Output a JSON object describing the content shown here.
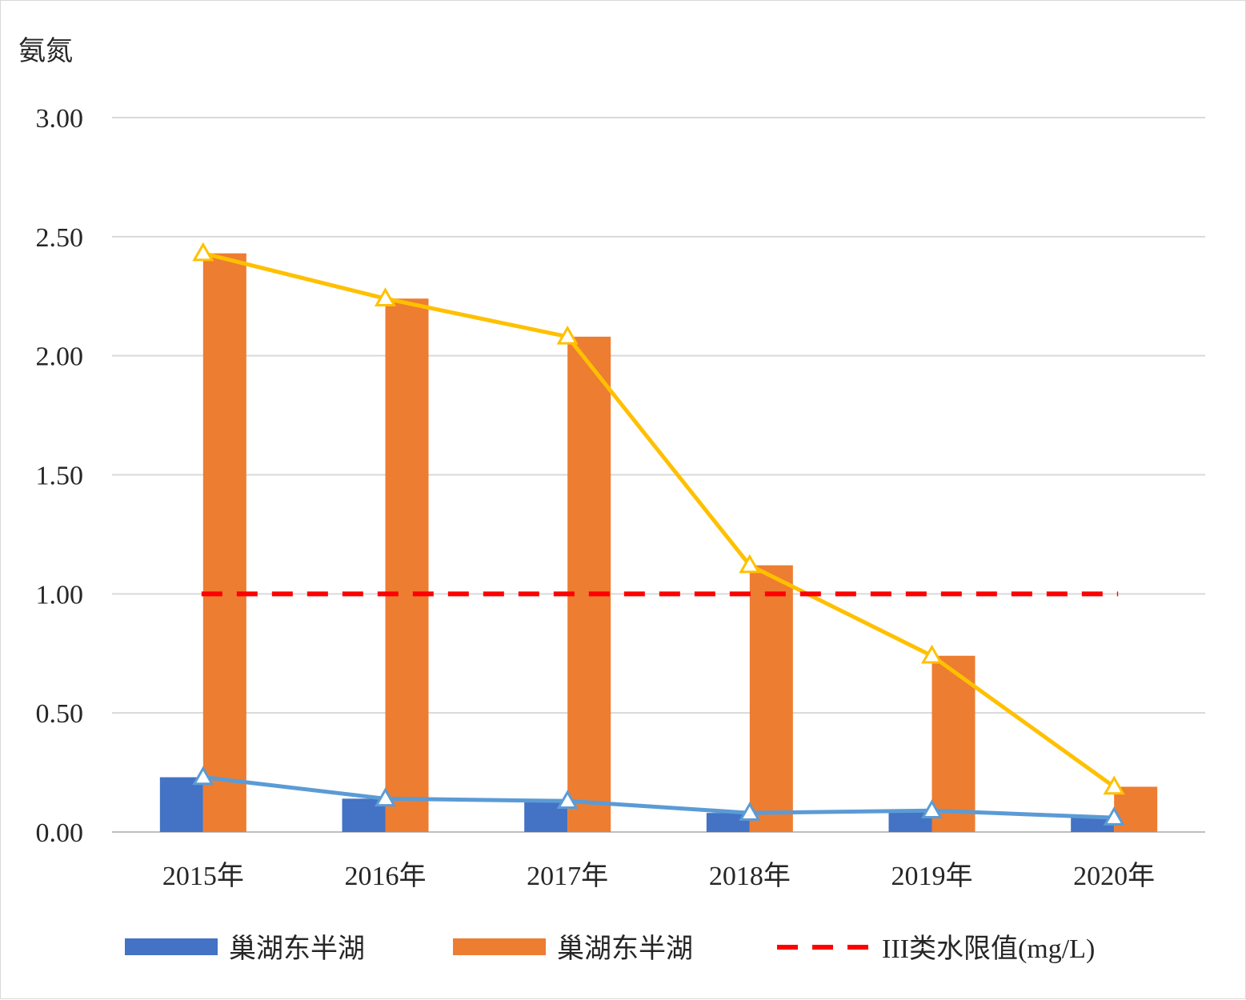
{
  "chart_data": {
    "type": "bar",
    "title": "",
    "ylabel": "氨氮",
    "xlabel": "",
    "ylim": [
      0,
      3
    ],
    "yticks": [
      "0.00",
      "0.50",
      "1.00",
      "1.50",
      "2.00",
      "2.50",
      "3.00"
    ],
    "categories": [
      "2015年",
      "2016年",
      "2017年",
      "2018年",
      "2019年",
      "2020年"
    ],
    "grid": true,
    "legend_position": "bottom",
    "series": [
      {
        "name": "巢湖东半湖",
        "kind": "bar",
        "color": "#4472C4",
        "values": [
          0.23,
          0.14,
          0.13,
          0.08,
          0.09,
          0.06
        ]
      },
      {
        "name": "巢湖东半湖",
        "kind": "bar",
        "color": "#ED7D31",
        "values": [
          2.43,
          2.24,
          2.08,
          1.12,
          0.74,
          0.19
        ]
      },
      {
        "name": "",
        "kind": "line",
        "color": "#5B9BD5",
        "marker": "triangle",
        "values": [
          0.23,
          0.14,
          0.13,
          0.08,
          0.09,
          0.06
        ]
      },
      {
        "name": "",
        "kind": "line",
        "color": "#FFC000",
        "marker": "triangle",
        "values": [
          2.43,
          2.24,
          2.08,
          1.12,
          0.74,
          0.19
        ]
      },
      {
        "name": "III类水限值(mg/L)",
        "kind": "dashed-line",
        "color": "#FF0000",
        "values": [
          1,
          1,
          1,
          1,
          1,
          1
        ]
      }
    ],
    "legend": [
      "巢湖东半湖",
      "巢湖东半湖",
      "III类水限值(mg/L)"
    ]
  }
}
